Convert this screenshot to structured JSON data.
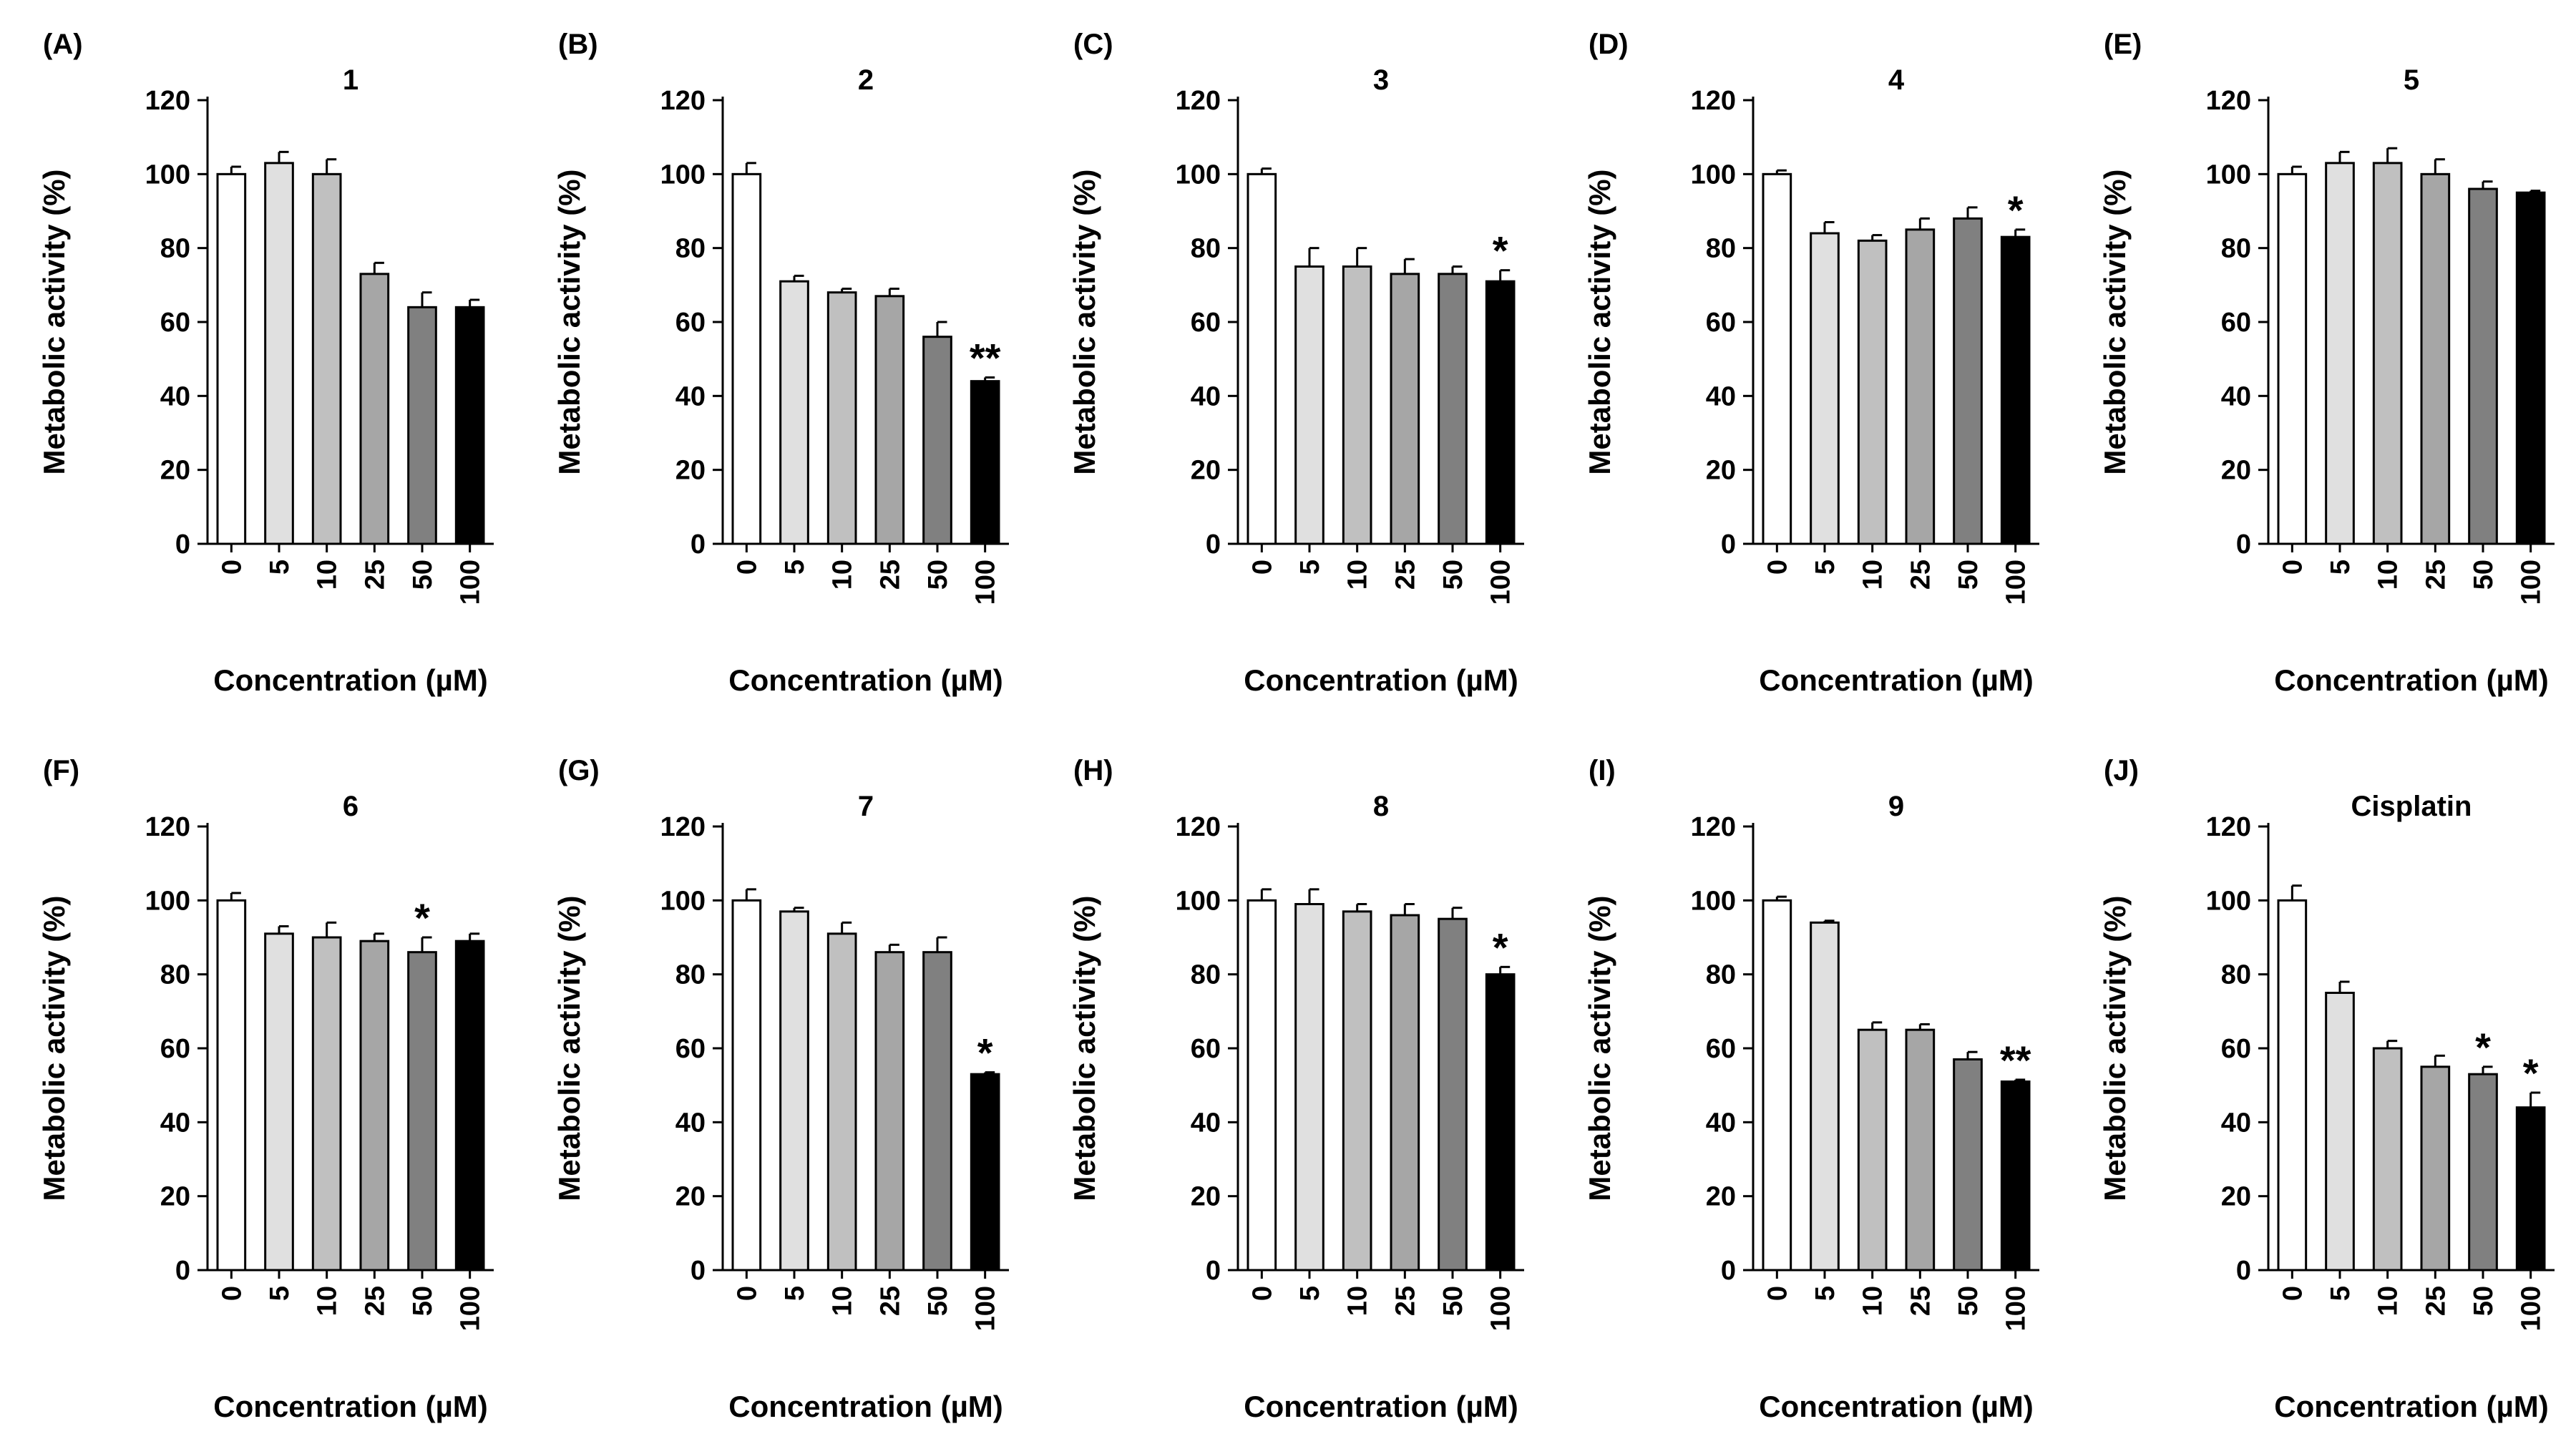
{
  "figure": {
    "panel_count": 10,
    "colors": {
      "background": "#ffffff",
      "axis": "#000000",
      "bar_outline": "#000000",
      "bar_shades": [
        "#ffffff",
        "#e0e0e0",
        "#c0c0c0",
        "#a6a6a6",
        "#808080",
        "#000000"
      ]
    }
  },
  "chart_data": [
    {
      "type": "bar",
      "panel": "(A)",
      "title": "1",
      "categories": [
        "0",
        "5",
        "10",
        "25",
        "50",
        "100"
      ],
      "values": [
        100,
        103,
        100,
        73,
        64,
        64
      ],
      "errors": [
        2,
        3,
        4,
        3,
        4,
        2
      ],
      "significance": [
        "",
        "",
        "",
        "",
        "",
        ""
      ],
      "xlabel": "Concentration (µM)",
      "ylabel": "Metabolic activity (%)",
      "ylim": [
        0,
        120
      ],
      "yticks": [
        0,
        20,
        40,
        60,
        80,
        100,
        120
      ]
    },
    {
      "type": "bar",
      "panel": "(B)",
      "title": "2",
      "categories": [
        "0",
        "5",
        "10",
        "25",
        "50",
        "100"
      ],
      "values": [
        100,
        71,
        68,
        67,
        56,
        44
      ],
      "errors": [
        3,
        1.5,
        1,
        2,
        4,
        1
      ],
      "significance": [
        "",
        "",
        "",
        "",
        "",
        "**"
      ],
      "xlabel": "Concentration (µM)",
      "ylabel": "Metabolic activity (%)",
      "ylim": [
        0,
        120
      ],
      "yticks": [
        0,
        20,
        40,
        60,
        80,
        100,
        120
      ]
    },
    {
      "type": "bar",
      "panel": "(C)",
      "title": "3",
      "categories": [
        "0",
        "5",
        "10",
        "25",
        "50",
        "100"
      ],
      "values": [
        100,
        75,
        75,
        73,
        73,
        71
      ],
      "errors": [
        1.5,
        5,
        5,
        4,
        2,
        3
      ],
      "significance": [
        "",
        "",
        "",
        "",
        "",
        "*"
      ],
      "xlabel": "Concentration (µM)",
      "ylabel": "Metabolic activity (%)",
      "ylim": [
        0,
        120
      ],
      "yticks": [
        0,
        20,
        40,
        60,
        80,
        100,
        120
      ]
    },
    {
      "type": "bar",
      "panel": "(D)",
      "title": "4",
      "categories": [
        "0",
        "5",
        "10",
        "25",
        "50",
        "100"
      ],
      "values": [
        100,
        84,
        82,
        85,
        88,
        83
      ],
      "errors": [
        1,
        3,
        1.5,
        3,
        3,
        2
      ],
      "significance": [
        "",
        "",
        "",
        "",
        "",
        "*"
      ],
      "xlabel": "Concentration (µM)",
      "ylabel": "Metabolic activity (%)",
      "ylim": [
        0,
        120
      ],
      "yticks": [
        0,
        20,
        40,
        60,
        80,
        100,
        120
      ]
    },
    {
      "type": "bar",
      "panel": "(E)",
      "title": "5",
      "categories": [
        "0",
        "5",
        "10",
        "25",
        "50",
        "100"
      ],
      "values": [
        100,
        103,
        103,
        100,
        96,
        95
      ],
      "errors": [
        2,
        3,
        4,
        4,
        2,
        0.5
      ],
      "significance": [
        "",
        "",
        "",
        "",
        "",
        ""
      ],
      "xlabel": "Concentration (µM)",
      "ylabel": "Metabolic activity (%)",
      "ylim": [
        0,
        120
      ],
      "yticks": [
        0,
        20,
        40,
        60,
        80,
        100,
        120
      ]
    },
    {
      "type": "bar",
      "panel": "(F)",
      "title": "6",
      "categories": [
        "0",
        "5",
        "10",
        "25",
        "50",
        "100"
      ],
      "values": [
        100,
        91,
        90,
        89,
        86,
        89
      ],
      "errors": [
        2,
        2,
        4,
        2,
        4,
        2
      ],
      "significance": [
        "",
        "",
        "",
        "",
        "*",
        ""
      ],
      "xlabel": "Concentration (µM)",
      "ylabel": "Metabolic activity (%)",
      "ylim": [
        0,
        120
      ],
      "yticks": [
        0,
        20,
        40,
        60,
        80,
        100,
        120
      ]
    },
    {
      "type": "bar",
      "panel": "(G)",
      "title": "7",
      "categories": [
        "0",
        "5",
        "10",
        "25",
        "50",
        "100"
      ],
      "values": [
        100,
        97,
        91,
        86,
        86,
        53
      ],
      "errors": [
        3,
        1,
        3,
        2,
        4,
        0.5
      ],
      "significance": [
        "",
        "",
        "",
        "",
        "",
        "*"
      ],
      "xlabel": "Concentration (µM)",
      "ylabel": "Metabolic activity (%)",
      "ylim": [
        0,
        120
      ],
      "yticks": [
        0,
        20,
        40,
        60,
        80,
        100,
        120
      ]
    },
    {
      "type": "bar",
      "panel": "(H)",
      "title": "8",
      "categories": [
        "0",
        "5",
        "10",
        "25",
        "50",
        "100"
      ],
      "values": [
        100,
        99,
        97,
        96,
        95,
        80
      ],
      "errors": [
        3,
        4,
        2,
        3,
        3,
        2
      ],
      "significance": [
        "",
        "",
        "",
        "",
        "",
        "*"
      ],
      "xlabel": "Concentration (µM)",
      "ylabel": "Metabolic activity (%)",
      "ylim": [
        0,
        120
      ],
      "yticks": [
        0,
        20,
        40,
        60,
        80,
        100,
        120
      ]
    },
    {
      "type": "bar",
      "panel": "(I)",
      "title": "9",
      "categories": [
        "0",
        "5",
        "10",
        "25",
        "50",
        "100"
      ],
      "values": [
        100,
        94,
        65,
        65,
        57,
        51
      ],
      "errors": [
        1,
        0.5,
        2,
        1.5,
        2,
        0.5
      ],
      "significance": [
        "",
        "",
        "",
        "",
        "",
        "**"
      ],
      "xlabel": "Concentration (µM)",
      "ylabel": "Metabolic activity (%)",
      "ylim": [
        0,
        120
      ],
      "yticks": [
        0,
        20,
        40,
        60,
        80,
        100,
        120
      ]
    },
    {
      "type": "bar",
      "panel": "(J)",
      "title": "Cisplatin",
      "categories": [
        "0",
        "5",
        "10",
        "25",
        "50",
        "100"
      ],
      "values": [
        100,
        75,
        60,
        55,
        53,
        44
      ],
      "errors": [
        4,
        3,
        2,
        3,
        2,
        4
      ],
      "significance": [
        "",
        "",
        "",
        "",
        "*",
        "*"
      ],
      "xlabel": "Concentration (µM)",
      "ylabel": "Metabolic activity (%)",
      "ylim": [
        0,
        120
      ],
      "yticks": [
        0,
        20,
        40,
        60,
        80,
        100,
        120
      ]
    }
  ]
}
